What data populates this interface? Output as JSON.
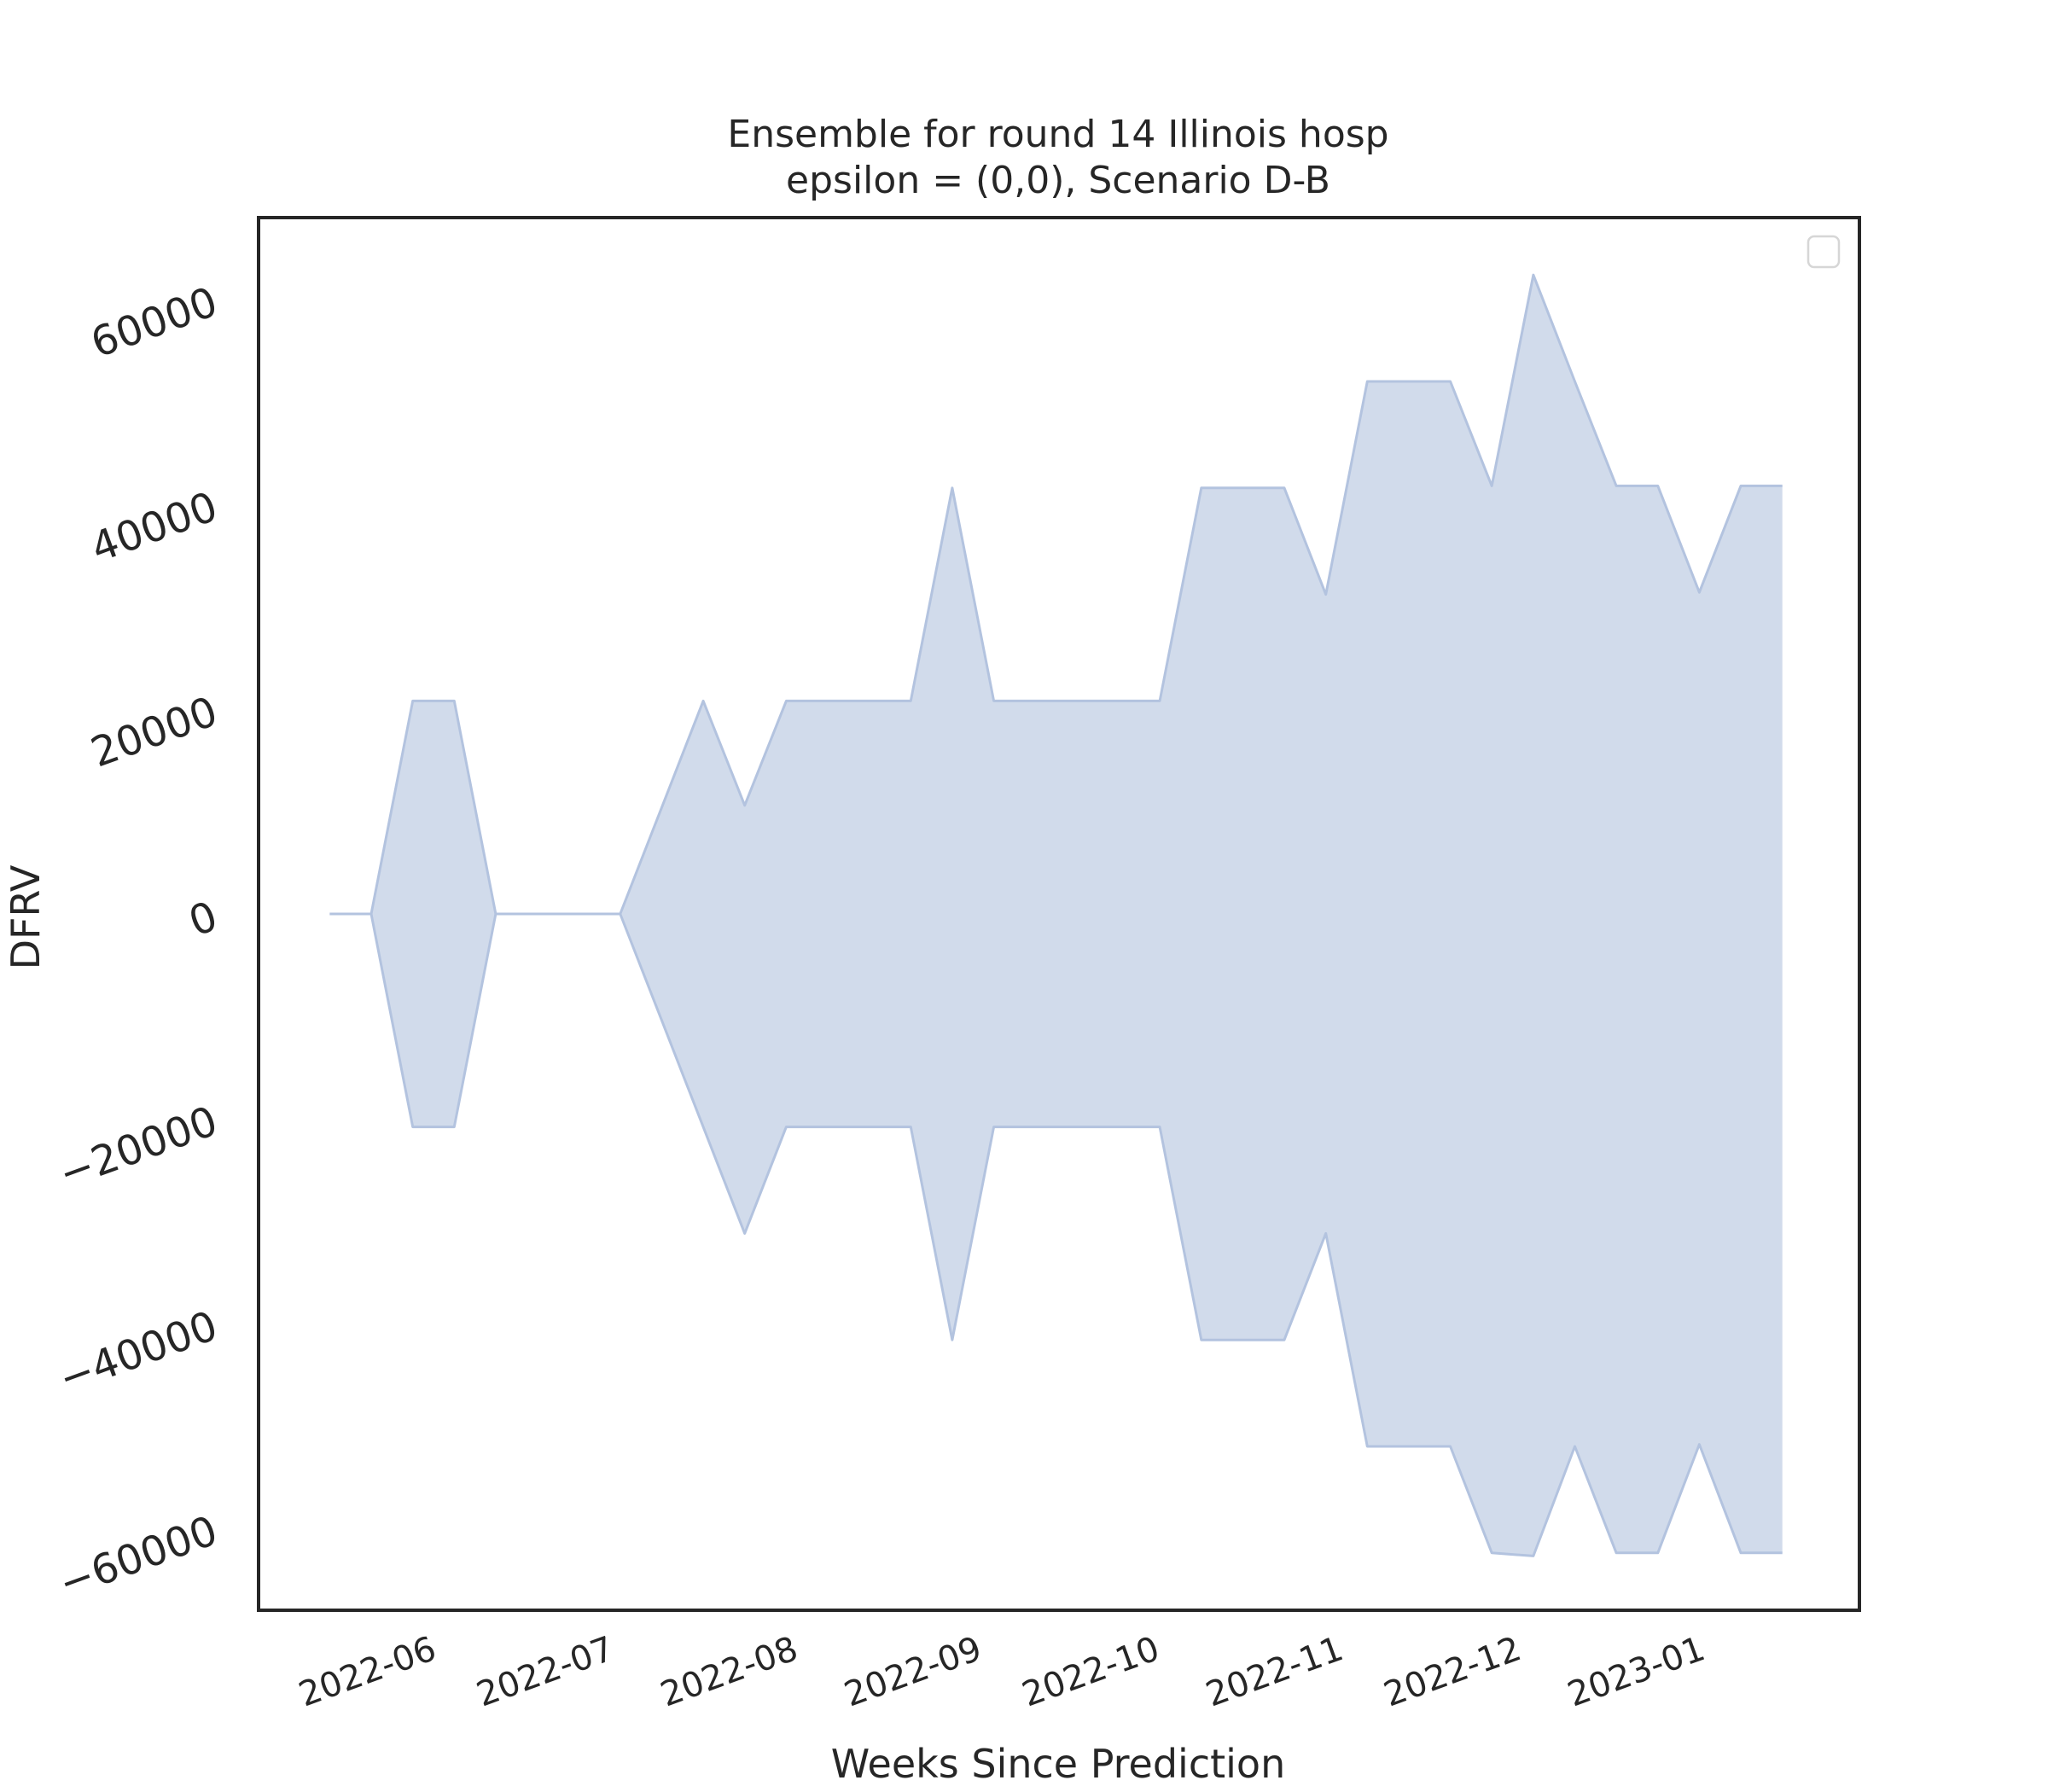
{
  "chart_data": {
    "type": "area",
    "title": "Ensemble for round 14 Illinois hosp",
    "subtitle": "epsilon = (0,0), Scenario D-B",
    "xlabel": "Weeks Since Prediction",
    "ylabel": "DFRV",
    "ylim": [
      -68000,
      68000
    ],
    "xlim": [
      "2022-05-06",
      "2023-01-31"
    ],
    "yticks": [
      -60000,
      -40000,
      -20000,
      0,
      20000,
      40000,
      60000
    ],
    "ytick_labels": [
      "−60000",
      "−40000",
      "−20000",
      "0",
      "20000",
      "40000",
      "60000"
    ],
    "xticks": [
      "2022-06-01",
      "2022-07-01",
      "2022-08-01",
      "2022-09-01",
      "2022-10-01",
      "2022-11-01",
      "2022-12-01",
      "2023-01-01"
    ],
    "xtick_labels": [
      "2022-06",
      "2022-07",
      "2022-08",
      "2022-09",
      "2022-10",
      "2022-11",
      "2022-12",
      "2023-01"
    ],
    "grid": false,
    "legend": {
      "position": "top-right",
      "entries": []
    },
    "colors": {
      "fill": "#d1dbeb",
      "edge": "#b3c3df",
      "axes": "#262626"
    },
    "band": {
      "dates": [
        "2022-05-18",
        "2022-05-25",
        "2022-06-01",
        "2022-06-08",
        "2022-06-15",
        "2022-06-22",
        "2022-06-29",
        "2022-07-06",
        "2022-07-13",
        "2022-07-20",
        "2022-07-27",
        "2022-08-03",
        "2022-08-10",
        "2022-08-17",
        "2022-08-24",
        "2022-08-31",
        "2022-09-07",
        "2022-09-14",
        "2022-09-21",
        "2022-09-28",
        "2022-10-05",
        "2022-10-12",
        "2022-10-19",
        "2022-10-26",
        "2022-11-02",
        "2022-11-09",
        "2022-11-16",
        "2022-11-23",
        "2022-11-30",
        "2022-12-07",
        "2022-12-14",
        "2022-12-21",
        "2022-12-28",
        "2023-01-04",
        "2023-01-11",
        "2023-01-18"
      ],
      "upper": [
        0,
        0,
        20800,
        20800,
        0,
        0,
        0,
        0,
        10400,
        20800,
        10600,
        20800,
        20800,
        20800,
        20800,
        41600,
        20800,
        20800,
        20800,
        20800,
        20800,
        41600,
        41600,
        41600,
        31200,
        52000,
        52000,
        52000,
        41800,
        62400,
        52000,
        41800,
        41800,
        31400,
        41800,
        41800
      ],
      "lower": [
        0,
        0,
        -20800,
        -20800,
        0,
        0,
        0,
        0,
        -10400,
        -20800,
        -31200,
        -20800,
        -20800,
        -20800,
        -20800,
        -41600,
        -20800,
        -20800,
        -20800,
        -20800,
        -20800,
        -41600,
        -41600,
        -41600,
        -31200,
        -52000,
        -52000,
        -52000,
        -62400,
        -62700,
        -52000,
        -62400,
        -62400,
        -51800,
        -62400,
        -62400
      ]
    }
  }
}
